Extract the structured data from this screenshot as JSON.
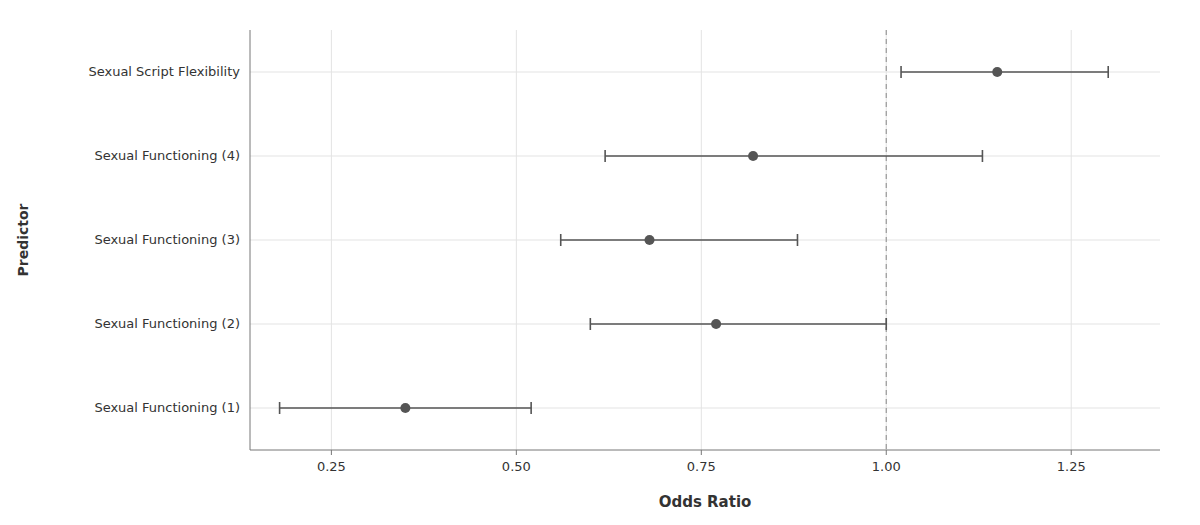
{
  "chart_data": {
    "type": "forest",
    "orientation": "horizontal",
    "categories": [
      "Sexual Script Flexibility",
      "Sexual Functioning (4)",
      "Sexual Functioning (3)",
      "Sexual Functioning (2)",
      "Sexual Functioning (1)"
    ],
    "values": [
      1.15,
      0.82,
      0.68,
      0.77,
      0.35
    ],
    "ci_lower": [
      1.02,
      0.62,
      0.56,
      0.6,
      0.18
    ],
    "ci_upper": [
      1.3,
      1.13,
      0.88,
      1.0,
      0.52
    ],
    "xlabel": "Odds Ratio",
    "ylabel": "Predictor",
    "xlim": [
      0.14,
      1.37
    ],
    "xticks": [
      0.25,
      {
        "value": 0.5,
        "label": "0.50"
      },
      0.75,
      {
        "value": 1.0,
        "label": "1.00"
      },
      1.25
    ],
    "reference_line": 1.0,
    "color": "#555555",
    "marker": "circle",
    "grid": true
  }
}
